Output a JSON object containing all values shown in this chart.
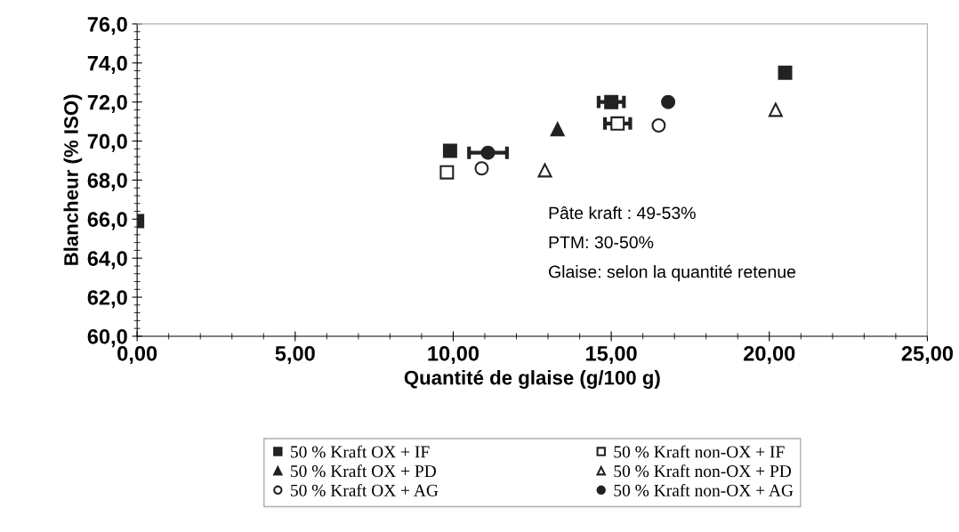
{
  "chart_data": {
    "type": "scatter",
    "xlabel": "Quantité de glaise (g/100 g)",
    "ylabel": "Blancheur (% ISO)",
    "xlim": [
      0,
      25
    ],
    "ylim": [
      60,
      76
    ],
    "xticks": [
      {
        "value": 0,
        "label": "0,00"
      },
      {
        "value": 5,
        "label": "5,00"
      },
      {
        "value": 10,
        "label": "10,00"
      },
      {
        "value": 15,
        "label": "15,00"
      },
      {
        "value": 20,
        "label": "20,00"
      },
      {
        "value": 25,
        "label": "25,00"
      }
    ],
    "yticks": [
      {
        "value": 60,
        "label": "60,0"
      },
      {
        "value": 62,
        "label": "62,0"
      },
      {
        "value": 64,
        "label": "64,0"
      },
      {
        "value": 66,
        "label": "66,0"
      },
      {
        "value": 68,
        "label": "68,0"
      },
      {
        "value": 70,
        "label": "70,0"
      },
      {
        "value": 72,
        "label": "72,0"
      },
      {
        "value": 74,
        "label": "74,0"
      },
      {
        "value": 76,
        "label": "76,0"
      }
    ],
    "grid": false,
    "legend": "bottom",
    "series": [
      {
        "name": "50 % Kraft OX + IF",
        "color": "#222222",
        "colors": [
          "#222222",
          "#222222",
          "#222222",
          "#222222"
        ],
        "marker": "square",
        "x": [
          0,
          9.9,
          15.0,
          20.5
        ],
        "values": [
          65.9,
          69.5,
          72.0,
          73.5
        ],
        "xerrors": [
          null,
          null,
          0.4,
          null
        ]
      },
      {
        "name": "50 % Kraft non-OX + IF",
        "color": "#222222",
        "colors": [
          "#ffffff",
          "#ffffff"
        ],
        "marker": "square",
        "x": [
          9.8,
          15.2
        ],
        "values": [
          68.4,
          70.9
        ],
        "xerrors": [
          null,
          0.4
        ]
      },
      {
        "name": "50 % Kraft OX + PD",
        "color": "#222222",
        "colors": [
          "#222222"
        ],
        "marker": "triangle",
        "x": [
          13.3
        ],
        "values": [
          70.6
        ]
      },
      {
        "name": "50 % Kraft non-OX + PD",
        "color": "#222222",
        "colors": [
          "#ffffff",
          "#ffffff"
        ],
        "marker": "triangle",
        "x": [
          12.9,
          20.2
        ],
        "values": [
          68.5,
          71.6
        ]
      },
      {
        "name": "50 % Kraft OX + AG",
        "color": "#222222",
        "colors": [
          "#ffffff",
          "#ffffff"
        ],
        "marker": "circle",
        "x": [
          10.9,
          16.5
        ],
        "values": [
          68.6,
          70.8
        ]
      },
      {
        "name": "50 % Kraft non-OX + AG",
        "color": "#222222",
        "colors": [
          "#222222",
          "#222222"
        ],
        "marker": "circle",
        "x": [
          11.1,
          16.8
        ],
        "values": [
          69.4,
          72.0
        ],
        "xerrors": [
          0.6,
          null
        ]
      }
    ],
    "annotations": [
      "Pâte kraft : 49-53%",
      "PTM: 30-50%",
      "Glaise: selon la quantité retenue"
    ]
  }
}
